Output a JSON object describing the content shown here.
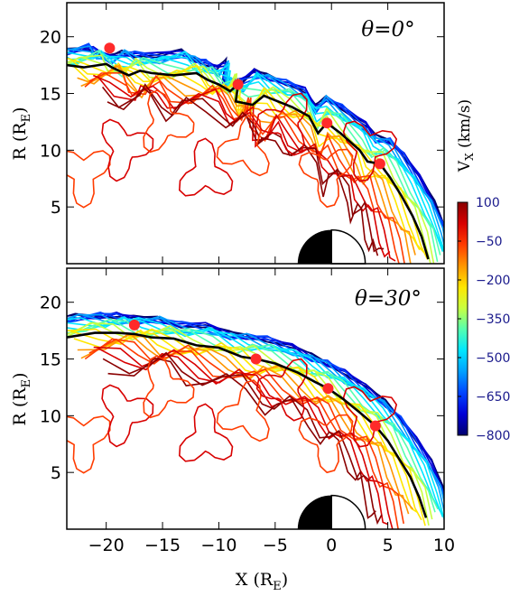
{
  "chart_data": [
    {
      "type": "contour",
      "panel_label": "θ=0°",
      "xlabel": "",
      "ylabel": "R (R_E)",
      "xlim": [
        -23.5,
        10
      ],
      "ylim": [
        0,
        23
      ],
      "yticks": [
        5,
        10,
        15,
        20
      ],
      "points": [
        {
          "x": -19.7,
          "y": 19.0
        },
        {
          "x": -8.3,
          "y": 15.8
        },
        {
          "x": -0.4,
          "y": 12.4
        },
        {
          "x": 4.3,
          "y": 8.8
        }
      ],
      "boundary": [
        [
          -23.5,
          17.5
        ],
        [
          -22,
          17.3
        ],
        [
          -20,
          17.6
        ],
        [
          -19.5,
          17.3
        ],
        [
          -18,
          16.6
        ],
        [
          -17,
          17.0
        ],
        [
          -16,
          16.8
        ],
        [
          -14,
          16.6
        ],
        [
          -12,
          16.8
        ],
        [
          -11,
          16.2
        ],
        [
          -10,
          15.8
        ],
        [
          -9,
          15.2
        ],
        [
          -8.3,
          15.8
        ],
        [
          -8.5,
          14.3
        ],
        [
          -7,
          14.0
        ],
        [
          -6,
          14.8
        ],
        [
          -5,
          14.4
        ],
        [
          -3.5,
          13.8
        ],
        [
          -2,
          13.0
        ],
        [
          -1.2,
          11.5
        ],
        [
          -0.4,
          12.4
        ],
        [
          0.8,
          11.5
        ],
        [
          2.5,
          10.0
        ],
        [
          3.2,
          9.0
        ],
        [
          4.3,
          8.8
        ],
        [
          5.2,
          7.6
        ],
        [
          6.2,
          6.0
        ],
        [
          7.2,
          4.2
        ],
        [
          8.0,
          2.4
        ],
        [
          8.6,
          0.4
        ]
      ]
    },
    {
      "type": "contour",
      "panel_label": "θ=30°",
      "xlabel": "X (R_E)",
      "ylabel": "R (R_E)",
      "xlim": [
        -23.5,
        10
      ],
      "ylim": [
        0,
        23
      ],
      "xticks": [
        -20,
        -15,
        -10,
        -5,
        0,
        5,
        10
      ],
      "yticks": [
        5,
        10,
        15,
        20
      ],
      "points": [
        {
          "x": -17.5,
          "y": 18.0
        },
        {
          "x": -6.7,
          "y": 15.0
        },
        {
          "x": -0.3,
          "y": 12.4
        },
        {
          "x": 3.9,
          "y": 9.1
        }
      ],
      "boundary": [
        [
          -23.5,
          16.9
        ],
        [
          -21,
          17.3
        ],
        [
          -19,
          17.3
        ],
        [
          -17.5,
          17.2
        ],
        [
          -16,
          16.9
        ],
        [
          -14,
          16.8
        ],
        [
          -12,
          16.2
        ],
        [
          -10,
          16.0
        ],
        [
          -8,
          15.2
        ],
        [
          -6.7,
          15.0
        ],
        [
          -5,
          14.6
        ],
        [
          -3,
          13.8
        ],
        [
          -1.5,
          13.0
        ],
        [
          -0.3,
          12.4
        ],
        [
          1,
          11.5
        ],
        [
          2.5,
          10.3
        ],
        [
          3.9,
          9.1
        ],
        [
          5,
          7.8
        ],
        [
          6,
          6.2
        ],
        [
          7,
          4.6
        ],
        [
          7.8,
          2.8
        ],
        [
          8.4,
          1.0
        ]
      ]
    }
  ],
  "colorbar": {
    "title": "V_x (km/s)",
    "ticks": [
      "100",
      "−50",
      "−200",
      "−350",
      "−500",
      "−650",
      "−800"
    ],
    "range": [
      -800,
      100
    ],
    "colors": [
      "#00006e",
      "#0000d6",
      "#0044ff",
      "#00a0ff",
      "#00e6ff",
      "#55ffb0",
      "#c8ff40",
      "#ffe600",
      "#ff9600",
      "#ff3c00",
      "#d80000",
      "#8a0000"
    ]
  }
}
